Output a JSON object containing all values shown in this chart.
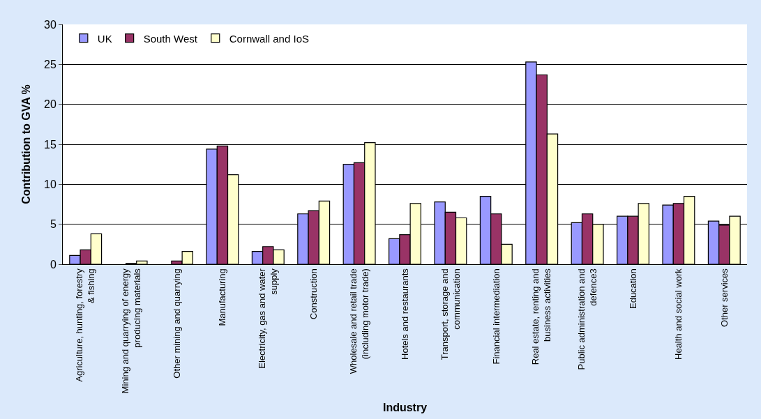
{
  "chart_data": {
    "type": "bar",
    "xlabel": "Industry",
    "ylabel": "Contribution to GVA %",
    "categories": [
      "Agriculture, hunting, forestry & fishing",
      "Mining and quarrying of energy producing materials",
      "Other mining and quarrying",
      "Manufacturing",
      "Electricity, gas and water supply",
      "Construction",
      "Wholesale and retail trade (including motor trade)",
      "Hotels and restaurants",
      "Transport, storage and communication",
      "Financial intermediation",
      "Real estate, renting and business activities",
      "Public administration and defence3",
      "Education",
      "Health and social work",
      "Other services"
    ],
    "series": [
      {
        "name": "UK",
        "color": "#9999ff",
        "values": [
          1.1,
          null,
          null,
          14.4,
          1.6,
          6.3,
          12.5,
          3.2,
          7.8,
          8.5,
          25.3,
          5.2,
          6.0,
          7.4,
          5.4
        ]
      },
      {
        "name": "South West",
        "color": "#993366",
        "values": [
          1.8,
          0.1,
          0.4,
          14.8,
          2.2,
          6.7,
          12.7,
          3.7,
          6.5,
          6.3,
          23.7,
          6.3,
          6.0,
          7.6,
          4.9
        ]
      },
      {
        "name": "Cornwall and IoS",
        "color": "#ffffcc",
        "values": [
          3.8,
          0.4,
          1.6,
          11.2,
          1.8,
          7.9,
          15.2,
          7.6,
          5.8,
          2.5,
          16.3,
          5.0,
          7.6,
          8.5,
          6.0
        ]
      }
    ],
    "ylim": [
      0,
      30
    ],
    "yticks": [
      0,
      5,
      10,
      15,
      20,
      25,
      30
    ],
    "grid": "y",
    "legend": "top left"
  }
}
